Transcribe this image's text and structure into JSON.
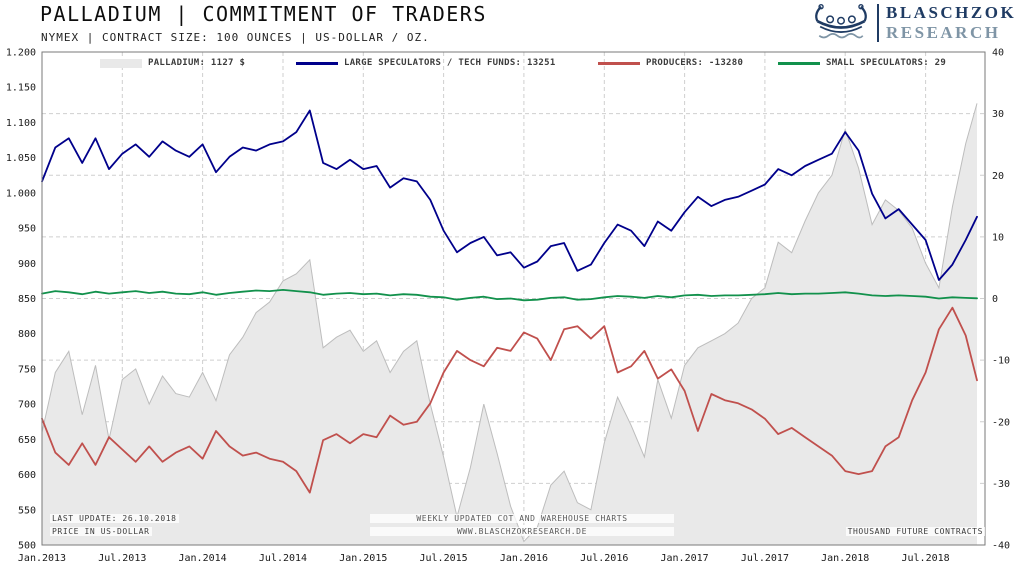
{
  "header": {
    "title": "PALLADIUM | COMMITMENT OF TRADERS",
    "subtitle": "NYMEX | CONTRACT SIZE: 100 OUNCES | US-DOLLAR / OZ."
  },
  "logo": {
    "line1": "BLASCHZOK",
    "line2": "RESEARCH"
  },
  "legend": [
    {
      "label": "PALLADIUM: 1127 $"
    },
    {
      "label": "LARGE SPECULATORS / TECH FUNDS: 13251"
    },
    {
      "label": "PRODUCERS: -13280"
    },
    {
      "label": "SMALL SPECULATORS: 29"
    }
  ],
  "footnotes": {
    "last_update": "LAST UPDATE: 26.10.2018",
    "price_unit": "PRICE IN US-DOLLAR",
    "center_line1": "WEEKLY UPDATED COT AND WAREHOUSE CHARTS",
    "center_line2": "WWW.BLASCHZOKRESEARCH.DE",
    "right_unit": "THOUSAND FUTURE CONTRACTS"
  },
  "chart_data": {
    "type": "line",
    "title": "PALLADIUM | COMMITMENT OF TRADERS",
    "legend_position": "top",
    "grid": true,
    "left_axis": {
      "label": "PRICE IN US-DOLLAR",
      "min": 500,
      "max": 1200,
      "tick_labels": [
        "1.200",
        "1.150",
        "1.100",
        "1.050",
        "1.000",
        "950",
        "900",
        "850",
        "800",
        "750",
        "700",
        "650",
        "600",
        "550",
        "500"
      ]
    },
    "right_axis": {
      "label": "THOUSAND FUTURE CONTRACTS",
      "min": -40,
      "max": 40,
      "tick_labels": [
        "40",
        "30",
        "20",
        "10",
        "0",
        "-10",
        "-20",
        "-30",
        "-40"
      ]
    },
    "x_axis": {
      "min": 2013.0,
      "max": 2018.87,
      "tick_labels": [
        "Jan.2013",
        "Jul.2013",
        "Jan.2014",
        "Jul.2014",
        "Jan.2015",
        "Jul.2015",
        "Jan.2016",
        "Jul.2016",
        "Jan.2017",
        "Jul.2017",
        "Jan.2018",
        "Jul.2018"
      ]
    },
    "x": [
      2013.0,
      2013.083,
      2013.167,
      2013.25,
      2013.333,
      2013.417,
      2013.5,
      2013.583,
      2013.667,
      2013.75,
      2013.833,
      2013.917,
      2014.0,
      2014.083,
      2014.167,
      2014.25,
      2014.333,
      2014.417,
      2014.5,
      2014.583,
      2014.667,
      2014.75,
      2014.833,
      2014.917,
      2015.0,
      2015.083,
      2015.167,
      2015.25,
      2015.333,
      2015.417,
      2015.5,
      2015.583,
      2015.667,
      2015.75,
      2015.833,
      2015.917,
      2016.0,
      2016.083,
      2016.167,
      2016.25,
      2016.333,
      2016.417,
      2016.5,
      2016.583,
      2016.667,
      2016.75,
      2016.833,
      2016.917,
      2017.0,
      2017.083,
      2017.167,
      2017.25,
      2017.333,
      2017.417,
      2017.5,
      2017.583,
      2017.667,
      2017.75,
      2017.833,
      2017.917,
      2018.0,
      2018.083,
      2018.167,
      2018.25,
      2018.333,
      2018.417,
      2018.5,
      2018.583,
      2018.667,
      2018.75,
      2018.82
    ],
    "series": [
      {
        "name": "PALLADIUM",
        "axis": "left",
        "style": "area",
        "unit": "USD/oz",
        "color": "#e9e9e9",
        "edge_color": "#bdbdbd",
        "last_value": 1127,
        "values": [
          660,
          745,
          775,
          685,
          755,
          650,
          735,
          750,
          700,
          740,
          715,
          710,
          745,
          705,
          770,
          795,
          830,
          845,
          875,
          885,
          905,
          780,
          795,
          805,
          775,
          790,
          745,
          775,
          790,
          700,
          625,
          540,
          610,
          700,
          630,
          555,
          505,
          525,
          585,
          605,
          560,
          550,
          645,
          710,
          670,
          625,
          735,
          680,
          755,
          780,
          790,
          800,
          815,
          850,
          865,
          930,
          915,
          960,
          1000,
          1025,
          1090,
          1035,
          955,
          990,
          975,
          950,
          900,
          865,
          980,
          1070,
          1127
        ]
      },
      {
        "name": "LARGE SPECULATORS / TECH FUNDS",
        "axis": "right",
        "style": "line",
        "unit": "thousand contracts",
        "color": "#00008b",
        "last_value": 13251,
        "values": [
          19,
          24.5,
          26,
          22,
          26,
          21,
          23.5,
          25,
          23,
          25.5,
          24,
          23,
          25,
          20.5,
          23,
          24.5,
          24,
          25,
          25.5,
          27,
          30.5,
          22,
          21,
          22.5,
          21,
          21.5,
          18,
          19.5,
          19,
          16,
          11,
          7.5,
          9,
          10,
          7,
          7.5,
          5,
          6,
          8.5,
          9,
          4.5,
          5.5,
          9,
          12,
          11,
          8.5,
          12.5,
          11,
          14,
          16.5,
          15,
          16,
          16.5,
          17.5,
          18.5,
          21,
          20,
          21.5,
          22.5,
          23.5,
          27,
          24,
          17,
          13,
          14.5,
          12,
          9.5,
          3,
          5.5,
          9.5,
          13.25
        ]
      },
      {
        "name": "PRODUCERS",
        "axis": "right",
        "style": "line",
        "unit": "thousand contracts",
        "color": "#c0504d",
        "last_value": -13280,
        "values": [
          -19.5,
          -25,
          -27,
          -23.5,
          -27,
          -22.5,
          -24.5,
          -26.5,
          -24,
          -26.5,
          -25,
          -24,
          -26,
          -21.5,
          -24,
          -25.5,
          -25,
          -26,
          -26.5,
          -28,
          -31.5,
          -23,
          -22,
          -23.5,
          -22,
          -22.5,
          -19,
          -20.5,
          -20,
          -17,
          -12,
          -8.5,
          -10,
          -11,
          -8,
          -8.5,
          -5.5,
          -6.5,
          -10,
          -5,
          -4.5,
          -6.5,
          -4.5,
          -12,
          -11,
          -8.5,
          -13,
          -11.5,
          -15,
          -21.5,
          -15.5,
          -16.5,
          -17,
          -18,
          -19.5,
          -22,
          -21,
          -22.5,
          -24,
          -25.5,
          -28,
          -28.5,
          -28,
          -24,
          -22.5,
          -16.5,
          -12,
          -5,
          -1.5,
          -6,
          -13.28
        ]
      },
      {
        "name": "SMALL SPECULATORS",
        "axis": "right",
        "style": "line",
        "unit": "thousand contracts",
        "color": "#12914c",
        "last_value": 29,
        "values": [
          0.8,
          1.2,
          1.0,
          0.7,
          1.1,
          0.8,
          1.0,
          1.2,
          0.9,
          1.1,
          0.8,
          0.7,
          1.0,
          0.6,
          0.9,
          1.1,
          1.3,
          1.2,
          1.4,
          1.2,
          1.0,
          0.6,
          0.8,
          0.9,
          0.7,
          0.8,
          0.5,
          0.7,
          0.6,
          0.3,
          0.2,
          -0.2,
          0.1,
          0.3,
          -0.1,
          0.0,
          -0.3,
          -0.2,
          0.1,
          0.2,
          -0.2,
          -0.1,
          0.2,
          0.4,
          0.3,
          0.1,
          0.4,
          0.2,
          0.5,
          0.6,
          0.4,
          0.5,
          0.5,
          0.6,
          0.7,
          0.9,
          0.7,
          0.8,
          0.8,
          0.9,
          1.0,
          0.8,
          0.5,
          0.4,
          0.5,
          0.4,
          0.3,
          0.0,
          0.2,
          0.1,
          0.03
        ]
      }
    ]
  }
}
